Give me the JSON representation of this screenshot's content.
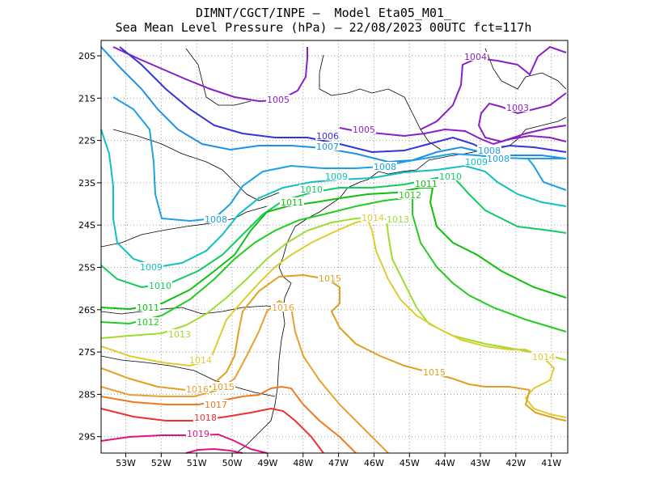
{
  "title": {
    "line1": "DIMNT/CGCT/INPE –  Model Eta05_M01_",
    "line2": "Sea Mean Level Pressure (hPa) – 22/08/2023 00UTC fct=117h"
  },
  "lon_ticks": [
    "53W",
    "52W",
    "51W",
    "50W",
    "49W",
    "48W",
    "47W",
    "46W",
    "45W",
    "44W",
    "43W",
    "42W",
    "41W"
  ],
  "lat_ticks": [
    "20S",
    "21S",
    "22S",
    "23S",
    "24S",
    "25S",
    "26S",
    "27S",
    "28S",
    "29S"
  ],
  "contours": [
    {
      "level": "1003",
      "color": "#8a1fc8"
    },
    {
      "level": "1004",
      "color": "#8a1fc8"
    },
    {
      "level": "1005",
      "color": "#8a1fc8"
    },
    {
      "level": "1006",
      "color": "#3333e0"
    },
    {
      "level": "1007",
      "color": "#1e90e8"
    },
    {
      "level": "1008",
      "color": "#1ca0e8"
    },
    {
      "level": "1009",
      "color": "#12c0c0"
    },
    {
      "level": "1010",
      "color": "#10cc60"
    },
    {
      "level": "1011",
      "color": "#10c010"
    },
    {
      "level": "1012",
      "color": "#22cc22"
    },
    {
      "level": "1013",
      "color": "#a0dc30"
    },
    {
      "level": "1014",
      "color": "#e0cc30"
    },
    {
      "level": "1015",
      "color": "#e0a020"
    },
    {
      "level": "1016",
      "color": "#e8a030"
    },
    {
      "level": "1017",
      "color": "#ee7a20"
    },
    {
      "level": "1018",
      "color": "#ee3030"
    },
    {
      "level": "1019",
      "color": "#e01480"
    }
  ]
}
